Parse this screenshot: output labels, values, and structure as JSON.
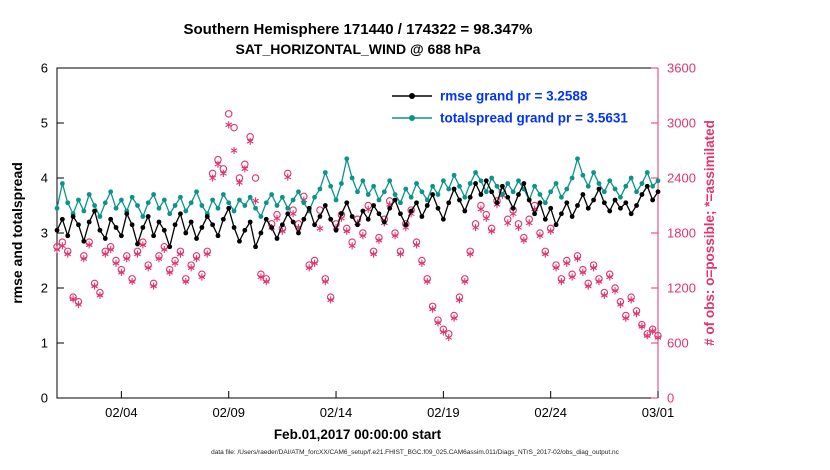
{
  "title": {
    "line1": "Southern Hemisphere 171440 / 174322 = 98.347%",
    "line2": "SAT_HORIZONTAL_WIND @ 688 hPa"
  },
  "footer": {
    "text": "data file: /Users/raeder/DAI/ATM_forcXX/CAM6_setup/f.e21.FHIST_BGC.f09_025.CAM6assim.011/Diags_NTrS_2017-02/obs_diag_output.nc"
  },
  "chart_data": {
    "type": "line",
    "title": "Southern Hemisphere 171440 / 174322 = 98.347% | SAT_HORIZONTAL_WIND @ 688 hPa",
    "xlabel": "Feb.01,2017 00:00:00 start",
    "ylabel_left": "rmse and totalspread",
    "ylabel_right": "# of obs: o=possible; *=assimilated",
    "left_ylim": [
      0,
      6
    ],
    "right_ylim": [
      0,
      3600
    ],
    "left_yticks": [
      0,
      1,
      2,
      3,
      4,
      5,
      6
    ],
    "right_yticks": [
      0,
      600,
      1200,
      1800,
      2400,
      3000,
      3600
    ],
    "x_range_days": [
      0,
      28
    ],
    "x_interval_days": 0.25,
    "xticks": [
      {
        "label": "02/04",
        "day": 3
      },
      {
        "label": "02/09",
        "day": 8
      },
      {
        "label": "02/14",
        "day": 13
      },
      {
        "label": "02/19",
        "day": 18
      },
      {
        "label": "02/24",
        "day": 23
      },
      {
        "label": "03/01",
        "day": 28
      }
    ],
    "grid": false,
    "legend_position": "top-right-inside",
    "colors": {
      "rmse": "#000000",
      "totalspread": "#0d9488",
      "possible": "#e0356e",
      "assimilated": "#e0356e",
      "legend_text": "#0033ff",
      "axis": "#000000"
    },
    "legend": [
      {
        "label": "rmse grand pr = 3.2588",
        "series": "rmse"
      },
      {
        "label": "totalspread grand pr = 3.5631",
        "series": "totalspread"
      }
    ],
    "series": [
      {
        "name": "rmse",
        "axis": "left",
        "marker": "dot",
        "line": true,
        "values": [
          3.05,
          3.25,
          2.95,
          3.3,
          3.15,
          2.85,
          3.2,
          3.4,
          3.05,
          2.9,
          3.25,
          3.1,
          2.95,
          3.35,
          3.15,
          2.8,
          3.1,
          3.3,
          2.95,
          3.2,
          3.05,
          2.75,
          3.15,
          3.35,
          3.0,
          3.2,
          2.9,
          3.1,
          3.3,
          3.15,
          2.95,
          3.25,
          3.45,
          3.1,
          2.85,
          3.05,
          3.2,
          2.75,
          3.0,
          3.25,
          3.1,
          2.9,
          3.15,
          3.35,
          3.2,
          3.0,
          3.25,
          3.45,
          3.15,
          3.3,
          3.5,
          3.25,
          3.05,
          3.35,
          3.55,
          3.3,
          3.15,
          3.4,
          3.25,
          3.5,
          3.35,
          3.2,
          3.45,
          3.6,
          3.35,
          3.15,
          3.4,
          3.55,
          3.3,
          3.5,
          3.7,
          3.45,
          3.25,
          3.55,
          3.8,
          3.6,
          3.4,
          3.65,
          3.9,
          3.7,
          3.95,
          3.75,
          3.55,
          3.85,
          3.65,
          3.45,
          3.7,
          3.9,
          3.6,
          3.35,
          3.55,
          3.25,
          3.45,
          3.15,
          3.35,
          3.55,
          3.3,
          3.5,
          3.7,
          3.45,
          3.6,
          3.8,
          3.55,
          3.4,
          3.6,
          3.45,
          3.55,
          3.35,
          3.5,
          3.7,
          3.85,
          3.6,
          3.75
        ]
      },
      {
        "name": "totalspread",
        "axis": "left",
        "marker": "dot",
        "line": true,
        "values": [
          3.45,
          3.9,
          3.55,
          3.35,
          3.6,
          3.4,
          3.7,
          3.5,
          3.3,
          3.55,
          3.75,
          3.45,
          3.6,
          3.4,
          3.65,
          3.5,
          3.3,
          3.55,
          3.7,
          3.45,
          3.6,
          3.35,
          3.5,
          3.65,
          3.4,
          3.55,
          3.75,
          3.5,
          3.35,
          3.6,
          3.45,
          3.7,
          3.55,
          3.4,
          3.6,
          3.5,
          3.65,
          3.45,
          3.3,
          3.55,
          3.7,
          3.5,
          3.65,
          3.45,
          3.6,
          3.75,
          3.55,
          3.4,
          3.65,
          3.8,
          4.1,
          3.85,
          3.6,
          3.9,
          4.35,
          4.0,
          3.75,
          3.95,
          3.7,
          3.85,
          3.6,
          3.75,
          3.95,
          3.7,
          3.55,
          3.8,
          3.65,
          3.9,
          3.75,
          3.6,
          3.85,
          3.7,
          3.95,
          3.8,
          4.05,
          3.85,
          3.65,
          3.9,
          4.1,
          3.95,
          3.75,
          4.0,
          3.85,
          3.7,
          3.9,
          3.75,
          3.95,
          3.8,
          3.6,
          3.85,
          3.7,
          3.55,
          3.75,
          3.9,
          3.65,
          3.8,
          4.0,
          4.35,
          4.05,
          3.85,
          4.1,
          3.9,
          3.75,
          3.95,
          3.8,
          3.65,
          3.85,
          4.0,
          3.75,
          3.9,
          4.1,
          3.85,
          3.95
        ]
      },
      {
        "name": "possible",
        "axis": "right",
        "marker": "circle",
        "line": false,
        "values": [
          1650,
          1700,
          1600,
          1100,
          1050,
          1550,
          1700,
          1250,
          1150,
          1600,
          1650,
          1500,
          1400,
          1550,
          1300,
          1600,
          1700,
          1450,
          1250,
          1550,
          1650,
          1400,
          1500,
          1600,
          1300,
          1450,
          1550,
          1350,
          1600,
          2450,
          2600,
          2500,
          3100,
          2950,
          2400,
          2550,
          2850,
          2400,
          1350,
          1300,
          1900,
          2000,
          1850,
          2450,
          2050,
          1900,
          2200,
          1450,
          1500,
          2050,
          1300,
          1100,
          1900,
          2000,
          1850,
          1700,
          1950,
          1800,
          2100,
          1600,
          1750,
          1950,
          2150,
          1800,
          1600,
          1900,
          2050,
          1700,
          1500,
          1300,
          1000,
          850,
          750,
          700,
          900,
          1100,
          1300,
          1600,
          1900,
          2100,
          2000,
          1850,
          2150,
          2250,
          1950,
          2050,
          1900,
          1750,
          1950,
          2100,
          1800,
          1600,
          1850,
          1450,
          1300,
          1500,
          1350,
          1550,
          1400,
          1250,
          1450,
          1300,
          1150,
          1350,
          1200,
          1050,
          900,
          1100,
          950,
          800,
          700,
          750,
          680
        ]
      },
      {
        "name": "assimilated",
        "axis": "right",
        "marker": "asterisk",
        "line": false,
        "values": [
          1620,
          1660,
          1570,
          1080,
          1020,
          1520,
          1670,
          1220,
          1120,
          1570,
          1620,
          1470,
          1370,
          1520,
          1270,
          1570,
          1670,
          1420,
          1220,
          1520,
          1620,
          1370,
          1470,
          1570,
          1270,
          1420,
          1520,
          1320,
          1570,
          2400,
          2550,
          2450,
          2980,
          2700,
          2350,
          2500,
          2800,
          2150,
          1320,
          1270,
          1860,
          1960,
          1820,
          2410,
          2010,
          1860,
          2160,
          1420,
          1470,
          1850,
          1270,
          1070,
          1860,
          1960,
          1820,
          1660,
          1910,
          1770,
          2060,
          1570,
          1720,
          1910,
          2110,
          1770,
          1570,
          1860,
          2010,
          1670,
          1470,
          1270,
          970,
          820,
          720,
          660,
          870,
          1070,
          1270,
          1570,
          1860,
          2060,
          1960,
          1820,
          2110,
          2210,
          1910,
          2010,
          1860,
          1720,
          1910,
          2060,
          1770,
          1570,
          1820,
          1420,
          1270,
          1470,
          1320,
          1520,
          1370,
          1220,
          1420,
          1270,
          1120,
          1320,
          1170,
          1020,
          870,
          1070,
          920,
          780,
          680,
          730,
          660
        ]
      }
    ]
  }
}
